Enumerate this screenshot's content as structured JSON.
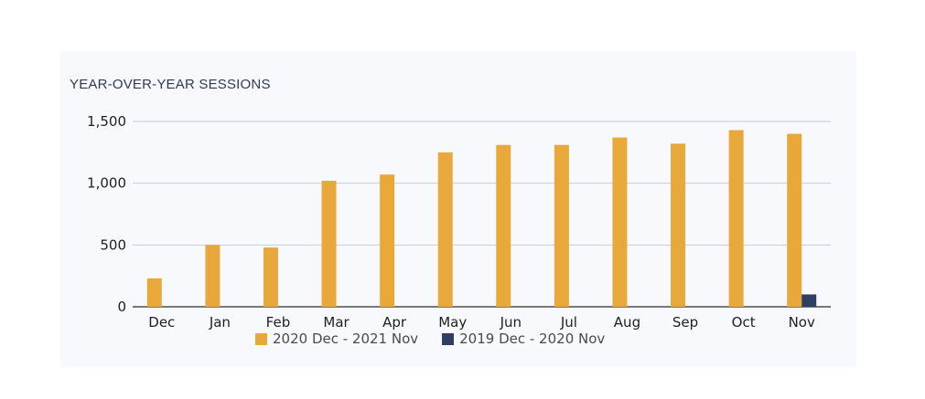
{
  "chart_data": {
    "type": "bar",
    "title": "YEAR-OVER-YEAR SESSIONS",
    "xlabel": "",
    "ylabel": "",
    "categories": [
      "Dec",
      "Jan",
      "Feb",
      "Mar",
      "Apr",
      "May",
      "Jun",
      "Jul",
      "Aug",
      "Sep",
      "Oct",
      "Nov"
    ],
    "series": [
      {
        "name": "2020 Dec - 2021 Nov",
        "color": "#e8a93a",
        "values": [
          230,
          500,
          480,
          1020,
          1070,
          1250,
          1310,
          1310,
          1370,
          1320,
          1430,
          1400
        ]
      },
      {
        "name": "2019 Dec - 2020 Nov",
        "color": "#2e3f62",
        "values": [
          null,
          null,
          null,
          null,
          null,
          null,
          null,
          null,
          null,
          null,
          null,
          100
        ]
      }
    ],
    "ylim": [
      0,
      1500
    ],
    "yticks": [
      0,
      500,
      1000,
      1500
    ],
    "ytick_labels": [
      "0",
      "500",
      "1,000",
      "1,500"
    ],
    "grid": true,
    "legend_position": "bottom"
  }
}
